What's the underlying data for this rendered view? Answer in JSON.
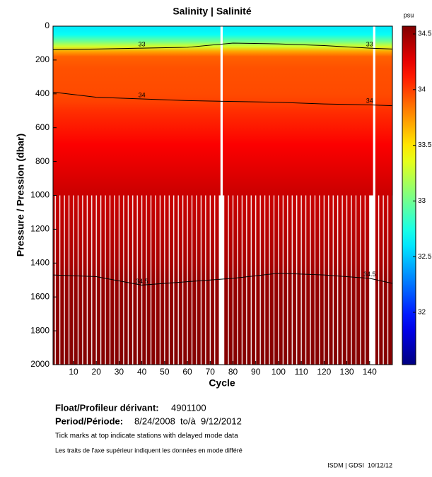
{
  "chart_data": {
    "type": "section",
    "title": "Salinity | Salinité",
    "x_label": "Cycle",
    "y_label": "Pressure / Pression (dbar)",
    "colorbar_label": "psu",
    "xlim": [
      1,
      150
    ],
    "xticks": [
      10,
      20,
      30,
      40,
      50,
      60,
      70,
      80,
      90,
      100,
      110,
      120,
      130,
      140
    ],
    "ylim": [
      0,
      2000
    ],
    "yticks": [
      0,
      200,
      400,
      600,
      800,
      1000,
      1200,
      1400,
      1600,
      1800,
      2000
    ],
    "y_reversed": true,
    "clim": [
      31.53,
      34.57
    ],
    "cticks": [
      32,
      32.5,
      33,
      33.5,
      34,
      34.5
    ],
    "colormap": "jet",
    "profile": {
      "pressure": [
        0,
        50,
        90,
        120,
        150,
        180,
        250,
        400,
        450,
        500,
        700,
        900,
        1000,
        1400,
        1500,
        2000
      ],
      "values": [
        32.6,
        32.7,
        33.0,
        33.3,
        33.7,
        33.9,
        33.95,
        33.97,
        34.0,
        34.05,
        34.2,
        34.3,
        34.35,
        34.45,
        34.5,
        34.56
      ]
    },
    "shallow_limit": 1000,
    "deep_cycles": [
      1,
      3,
      5,
      7,
      9,
      11,
      13,
      15,
      17,
      19,
      21,
      23,
      25,
      27,
      29,
      31,
      33,
      35,
      37,
      39,
      41,
      43,
      45,
      47,
      49,
      51,
      53,
      55,
      57,
      59,
      61,
      63,
      65,
      67,
      69,
      71,
      73,
      77,
      79,
      81,
      83,
      85,
      87,
      89,
      91,
      93,
      95,
      97,
      99,
      101,
      103,
      105,
      107,
      109,
      111,
      113,
      115,
      117,
      119,
      121,
      123,
      125,
      127,
      129,
      131,
      133,
      135,
      137,
      139,
      143,
      145,
      147,
      149
    ],
    "missing_cycles": [
      75,
      142
    ],
    "contours": [
      {
        "level": 33,
        "x": [
          1,
          20,
          40,
          60,
          80,
          100,
          120,
          140,
          150
        ],
        "values": [
          140,
          135,
          130,
          125,
          100,
          105,
          115,
          130,
          135
        ]
      },
      {
        "level": 34,
        "x": [
          1,
          20,
          40,
          60,
          80,
          100,
          120,
          140,
          150
        ],
        "values": [
          390,
          420,
          430,
          440,
          445,
          450,
          460,
          465,
          470
        ]
      },
      {
        "level": 34.5,
        "x": [
          1,
          20,
          40,
          60,
          80,
          100,
          120,
          140,
          150
        ],
        "values": [
          1470,
          1480,
          1530,
          1510,
          1490,
          1460,
          1470,
          1490,
          1520
        ]
      }
    ],
    "float_label": "Float/Profileur dérivant:",
    "float_id": "4901100",
    "period_label": "Period/Période:",
    "period": "8/24/2008  to/à  9/12/2012",
    "note_en": "Tick marks at top indicate stations with delayed mode data",
    "note_fr": "Les traits de l'axe supérieur indiquent les données en mode différé",
    "credit": "ISDM | GDSI  10/12/12"
  }
}
